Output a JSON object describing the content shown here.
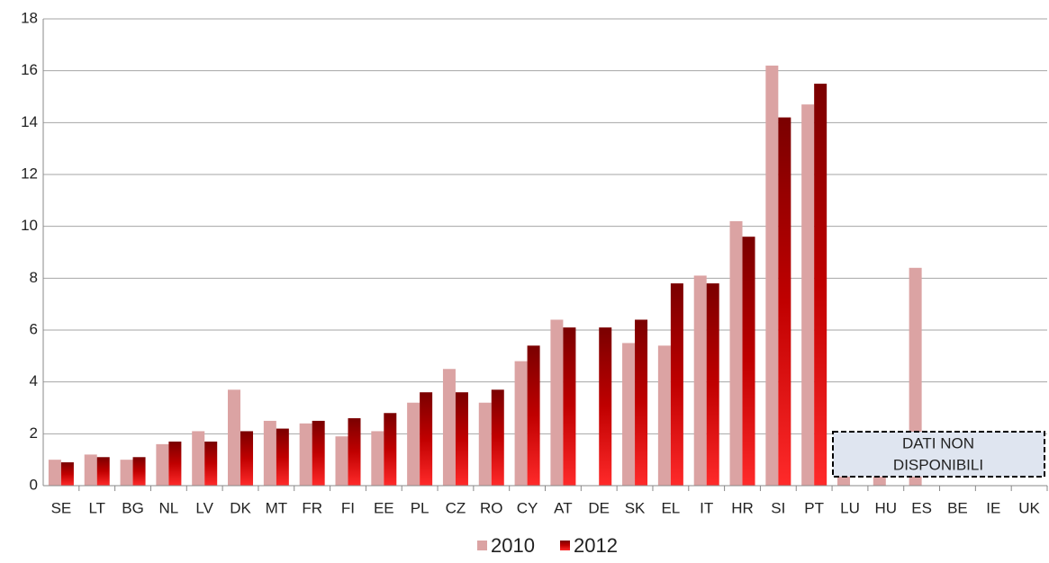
{
  "chart_data": {
    "type": "bar",
    "categories": [
      "SE",
      "LT",
      "BG",
      "NL",
      "LV",
      "DK",
      "MT",
      "FR",
      "FI",
      "EE",
      "PL",
      "CZ",
      "RO",
      "CY",
      "AT",
      "DE",
      "SK",
      "EL",
      "IT",
      "HR",
      "SI",
      "PT",
      "LU",
      "HU",
      "ES",
      "BE",
      "IE",
      "UK"
    ],
    "series": [
      {
        "name": "2010",
        "color": "#dba3a3",
        "values": [
          1.0,
          1.2,
          1.0,
          1.6,
          2.1,
          3.7,
          2.5,
          2.4,
          1.9,
          2.1,
          3.2,
          4.5,
          3.2,
          4.8,
          6.4,
          null,
          5.5,
          5.4,
          8.1,
          10.2,
          16.2,
          14.7,
          0.4,
          1.6,
          8.4,
          null,
          null,
          null
        ]
      },
      {
        "name": "2012",
        "color": "#c00000",
        "values": [
          0.9,
          1.1,
          1.1,
          1.7,
          1.7,
          2.1,
          2.2,
          2.5,
          2.6,
          2.8,
          3.6,
          3.6,
          3.7,
          5.4,
          6.1,
          6.1,
          6.4,
          7.8,
          7.8,
          9.6,
          14.2,
          15.5,
          null,
          null,
          null,
          null,
          null,
          null
        ]
      }
    ],
    "ylim": [
      0,
      18
    ],
    "yticks": [
      0,
      2,
      4,
      6,
      8,
      10,
      12,
      14,
      16,
      18
    ],
    "grid": true,
    "legend": "bottom",
    "annotation": [
      "DATI NON",
      "DISPONIBILI"
    ]
  }
}
